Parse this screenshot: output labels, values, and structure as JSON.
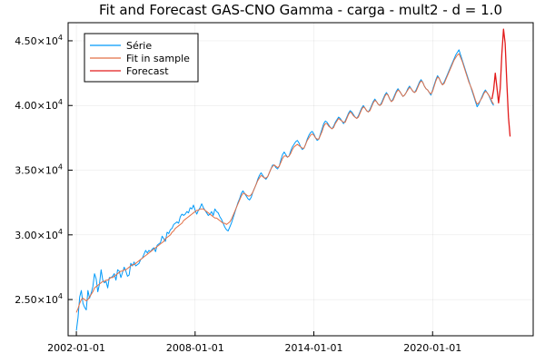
{
  "chart_data": {
    "type": "line",
    "title": "Fit and Forecast GAS-CNO Gamma - carga - mult2 - d = 1.0",
    "xlabel": "",
    "ylabel": "",
    "x_ticks": [
      "2002-01-01",
      "2008-01-01",
      "2014-01-01",
      "2020-01-01"
    ],
    "y_ticks": [
      {
        "value": 25000,
        "base": "2.50×10",
        "exp": "4"
      },
      {
        "value": 30000,
        "base": "3.00×10",
        "exp": "4"
      },
      {
        "value": 35000,
        "base": "3.50×10",
        "exp": "4"
      },
      {
        "value": 40000,
        "base": "4.00×10",
        "exp": "4"
      },
      {
        "value": 45000,
        "base": "4.50×10",
        "exp": "4"
      }
    ],
    "xlim": [
      "2001-08-01",
      "2025-02-01"
    ],
    "ylim": [
      22200,
      46400
    ],
    "grid": true,
    "legend_position": "top-left",
    "series": [
      {
        "name": "Série",
        "color": "#009AFA",
        "start": "2002-01",
        "values": [
          22600,
          23600,
          25200,
          25700,
          24700,
          24400,
          24200,
          25700,
          25100,
          25500,
          26000,
          27000,
          26600,
          25600,
          26200,
          27300,
          26500,
          26300,
          26400,
          25900,
          26700,
          26700,
          26800,
          27000,
          26500,
          27300,
          27200,
          26700,
          27100,
          27500,
          27200,
          26800,
          26900,
          27800,
          27600,
          27900,
          27600,
          27700,
          27800,
          28100,
          28200,
          28500,
          28800,
          28600,
          28800,
          28700,
          28900,
          29000,
          28700,
          29200,
          29300,
          29400,
          29900,
          29700,
          29500,
          30200,
          30100,
          30400,
          30500,
          30800,
          30900,
          31000,
          30900,
          31400,
          31600,
          31500,
          31600,
          31800,
          31700,
          32100,
          32000,
          32300,
          31900,
          31600,
          31900,
          32100,
          32400,
          32100,
          31900,
          31700,
          31500,
          31600,
          31800,
          31500,
          32000,
          31800,
          31700,
          31400,
          31200,
          30900,
          30600,
          30400,
          30300,
          30600,
          30900,
          31300,
          31700,
          32100,
          32500,
          32800,
          33200,
          33400,
          33200,
          33000,
          32800,
          32700,
          32900,
          33300,
          33600,
          33900,
          34300,
          34600,
          34800,
          34600,
          34400,
          34300,
          34500,
          34800,
          35100,
          35400,
          35400,
          35200,
          35100,
          35300,
          35800,
          36200,
          36400,
          36200,
          36000,
          36100,
          36500,
          36800,
          37000,
          37200,
          37300,
          37100,
          36800,
          36600,
          36700,
          37000,
          37400,
          37700,
          37900,
          38000,
          37800,
          37500,
          37300,
          37400,
          37800,
          38200,
          38600,
          38800,
          38700,
          38500,
          38300,
          38200,
          38400,
          38700,
          38900,
          39100,
          39000,
          38800,
          38600,
          38800,
          39100,
          39400,
          39600,
          39500,
          39300,
          39100,
          39000,
          39200,
          39500,
          39800,
          40000,
          39800,
          39600,
          39500,
          39700,
          40000,
          40300,
          40500,
          40300,
          40100,
          40000,
          40200,
          40500,
          40800,
          41000,
          40800,
          40500,
          40300,
          40500,
          40800,
          41100,
          41300,
          41100,
          40900,
          40700,
          40800,
          41000,
          41300,
          41500,
          41300,
          41100,
          41000,
          41200,
          41500,
          41800,
          42000,
          41800,
          41500,
          41300,
          41200,
          41000,
          40800,
          41200,
          41600,
          42000,
          42300,
          42100,
          41800,
          41600,
          41800,
          42100,
          42400,
          42700,
          43000,
          43300,
          43600,
          43900,
          44100,
          44300,
          43900,
          43500,
          43100,
          42700,
          42300,
          41900,
          41500,
          41100,
          40700,
          40300,
          39900,
          40100,
          40400,
          40700,
          41000,
          41200,
          41000,
          40800,
          40500,
          40200,
          40000
        ]
      },
      {
        "name": "Fit in sample",
        "color": "#E26F46",
        "start": "2002-01",
        "values": [
          24000,
          24300,
          24700,
          25000,
          25100,
          25000,
          24900,
          25000,
          25200,
          25400,
          25600,
          25900,
          26000,
          26100,
          26200,
          26300,
          26400,
          26400,
          26500,
          26500,
          26600,
          26700,
          26700,
          26800,
          26900,
          27000,
          27100,
          27200,
          27200,
          27300,
          27300,
          27400,
          27500,
          27600,
          27700,
          27700,
          27800,
          27900,
          28000,
          28100,
          28200,
          28300,
          28400,
          28500,
          28600,
          28700,
          28800,
          28900,
          29000,
          29100,
          29200,
          29300,
          29400,
          29500,
          29700,
          29800,
          29900,
          30000,
          30200,
          30300,
          30500,
          30600,
          30700,
          30800,
          30900,
          31100,
          31200,
          31300,
          31400,
          31500,
          31600,
          31700,
          31800,
          31900,
          31900,
          32000,
          32000,
          32000,
          31900,
          31800,
          31700,
          31600,
          31500,
          31400,
          31300,
          31300,
          31200,
          31100,
          31000,
          30900,
          30900,
          30800,
          30900,
          31000,
          31200,
          31500,
          31800,
          32100,
          32400,
          32700,
          33000,
          33200,
          33200,
          33100,
          33000,
          33000,
          33100,
          33300,
          33600,
          33900,
          34200,
          34400,
          34600,
          34500,
          34400,
          34400,
          34500,
          34800,
          35100,
          35300,
          35400,
          35300,
          35200,
          35300,
          35600,
          35900,
          36100,
          36100,
          36000,
          36100,
          36300,
          36600,
          36800,
          36900,
          37000,
          36900,
          36800,
          36700,
          36700,
          37000,
          37300,
          37500,
          37700,
          37800,
          37700,
          37500,
          37400,
          37400,
          37700,
          38000,
          38400,
          38600,
          38600,
          38400,
          38300,
          38200,
          38300,
          38600,
          38800,
          39000,
          38900,
          38800,
          38700,
          38700,
          39000,
          39300,
          39500,
          39400,
          39200,
          39100,
          39000,
          39100,
          39400,
          39700,
          39900,
          39800,
          39600,
          39500,
          39600,
          39900,
          40200,
          40400,
          40300,
          40100,
          40000,
          40100,
          40400,
          40700,
          40900,
          40800,
          40500,
          40300,
          40400,
          40700,
          41000,
          41200,
          41100,
          40900,
          40700,
          40800,
          41000,
          41200,
          41400,
          41300,
          41100,
          41000,
          41100,
          41400,
          41700,
          41900,
          41800,
          41500,
          41300,
          41200,
          41000,
          40900,
          41100,
          41500,
          41900,
          42200,
          42100,
          41800,
          41600,
          41700,
          42000,
          42300,
          42600,
          42900,
          43200,
          43500,
          43700,
          43900,
          44000,
          43700,
          43400,
          43000,
          42600,
          42200,
          41800,
          41500,
          41200,
          40800,
          40400,
          40100,
          40200,
          40400,
          40600,
          40900,
          41100,
          41000,
          40800,
          40600,
          40300,
          40100
        ]
      },
      {
        "name": "Forecast",
        "color": "#E21A1A",
        "start": "2023-01",
        "values": [
          40500,
          41200,
          42500,
          41400,
          40200,
          41300,
          44000,
          45900,
          44800,
          41800,
          39100,
          37600
        ]
      }
    ]
  }
}
